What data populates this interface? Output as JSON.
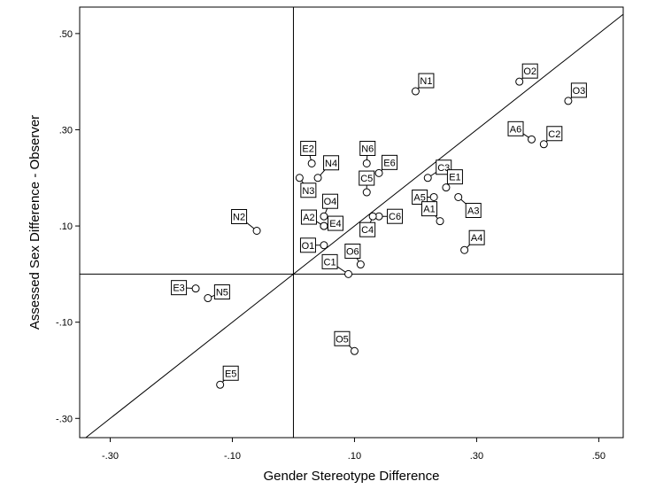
{
  "chart_data": {
    "type": "scatter",
    "xlabel": "Gender Stereotype Difference",
    "ylabel": "Assessed Sex Difference - Observer",
    "xlim": [
      -0.35,
      0.54
    ],
    "ylim": [
      -0.34,
      0.555
    ],
    "x_ticks": [
      {
        "value": -0.3,
        "label": "-.30"
      },
      {
        "value": -0.1,
        "label": "-.10"
      },
      {
        "value": 0.1,
        "label": ".10"
      },
      {
        "value": 0.3,
        "label": ".30"
      },
      {
        "value": 0.5,
        "label": ".50"
      }
    ],
    "y_ticks": [
      {
        "value": 0.5,
        "label": ".50"
      },
      {
        "value": 0.3,
        "label": ".30"
      },
      {
        "value": 0.1,
        "label": ".10"
      },
      {
        "value": -0.1,
        "label": "-.10"
      },
      {
        "value": -0.3,
        "label": "-.30"
      }
    ],
    "reference_lines": [
      "x=0",
      "y=0",
      "y=x"
    ],
    "grid": false,
    "points": [
      {
        "label": "N1",
        "x": 0.2,
        "y": 0.38
      },
      {
        "label": "O2",
        "x": 0.37,
        "y": 0.4
      },
      {
        "label": "O3",
        "x": 0.45,
        "y": 0.36
      },
      {
        "label": "A6",
        "x": 0.39,
        "y": 0.28
      },
      {
        "label": "C2",
        "x": 0.41,
        "y": 0.27
      },
      {
        "label": "E2",
        "x": 0.03,
        "y": 0.23
      },
      {
        "label": "N6",
        "x": 0.12,
        "y": 0.23
      },
      {
        "label": "N4",
        "x": 0.04,
        "y": 0.2
      },
      {
        "label": "E6",
        "x": 0.14,
        "y": 0.21
      },
      {
        "label": "N3",
        "x": 0.01,
        "y": 0.2
      },
      {
        "label": "C5",
        "x": 0.12,
        "y": 0.17
      },
      {
        "label": "C3",
        "x": 0.22,
        "y": 0.2
      },
      {
        "label": "E1",
        "x": 0.25,
        "y": 0.18
      },
      {
        "label": "A5",
        "x": 0.23,
        "y": 0.16
      },
      {
        "label": "A3",
        "x": 0.27,
        "y": 0.16
      },
      {
        "label": "A1",
        "x": 0.24,
        "y": 0.11
      },
      {
        "label": "O4",
        "x": 0.05,
        "y": 0.12
      },
      {
        "label": "A2",
        "x": 0.05,
        "y": 0.1
      },
      {
        "label": "E4",
        "x": 0.05,
        "y": 0.1
      },
      {
        "label": "C6",
        "x": 0.14,
        "y": 0.12
      },
      {
        "label": "C4",
        "x": 0.13,
        "y": 0.12
      },
      {
        "label": "N2",
        "x": -0.06,
        "y": 0.09
      },
      {
        "label": "O1",
        "x": 0.05,
        "y": 0.06
      },
      {
        "label": "O6",
        "x": 0.11,
        "y": 0.02
      },
      {
        "label": "C1",
        "x": 0.09,
        "y": 0.0
      },
      {
        "label": "A4",
        "x": 0.28,
        "y": 0.05
      },
      {
        "label": "E3",
        "x": -0.16,
        "y": -0.03
      },
      {
        "label": "N5",
        "x": -0.14,
        "y": -0.05
      },
      {
        "label": "O5",
        "x": 0.1,
        "y": -0.16
      },
      {
        "label": "E5",
        "x": -0.12,
        "y": -0.23
      }
    ]
  }
}
